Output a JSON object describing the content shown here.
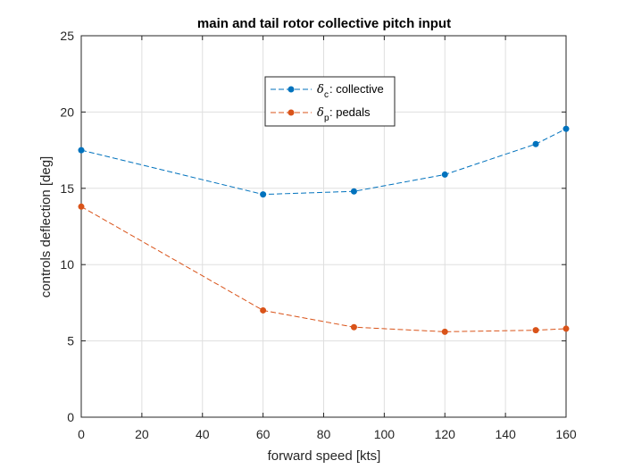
{
  "chart_data": {
    "type": "line",
    "title": "main and tail rotor collective pitch input",
    "xlabel": "forward speed [kts]",
    "ylabel": "controls deflection [deg]",
    "xlim": [
      0,
      160
    ],
    "ylim": [
      0,
      25
    ],
    "xticks": [
      "0",
      "20",
      "40",
      "60",
      "80",
      "100",
      "120",
      "140",
      "160"
    ],
    "yticks": [
      "0",
      "5",
      "10",
      "15",
      "20",
      "25"
    ],
    "grid": true,
    "legend_position": "top-center",
    "series": [
      {
        "name_symbol": "δ",
        "name_sub": "c",
        "name_suffix": ": collective",
        "color": "#0072BD",
        "x": [
          0,
          60,
          90,
          120,
          150,
          160
        ],
        "y": [
          17.5,
          14.6,
          14.8,
          15.9,
          17.9,
          18.9
        ]
      },
      {
        "name_symbol": "δ",
        "name_sub": "p",
        "name_suffix": ": pedals",
        "color": "#D95319",
        "x": [
          0,
          60,
          90,
          120,
          150,
          160
        ],
        "y": [
          13.8,
          7.0,
          5.9,
          5.6,
          5.7,
          5.8
        ]
      }
    ]
  }
}
